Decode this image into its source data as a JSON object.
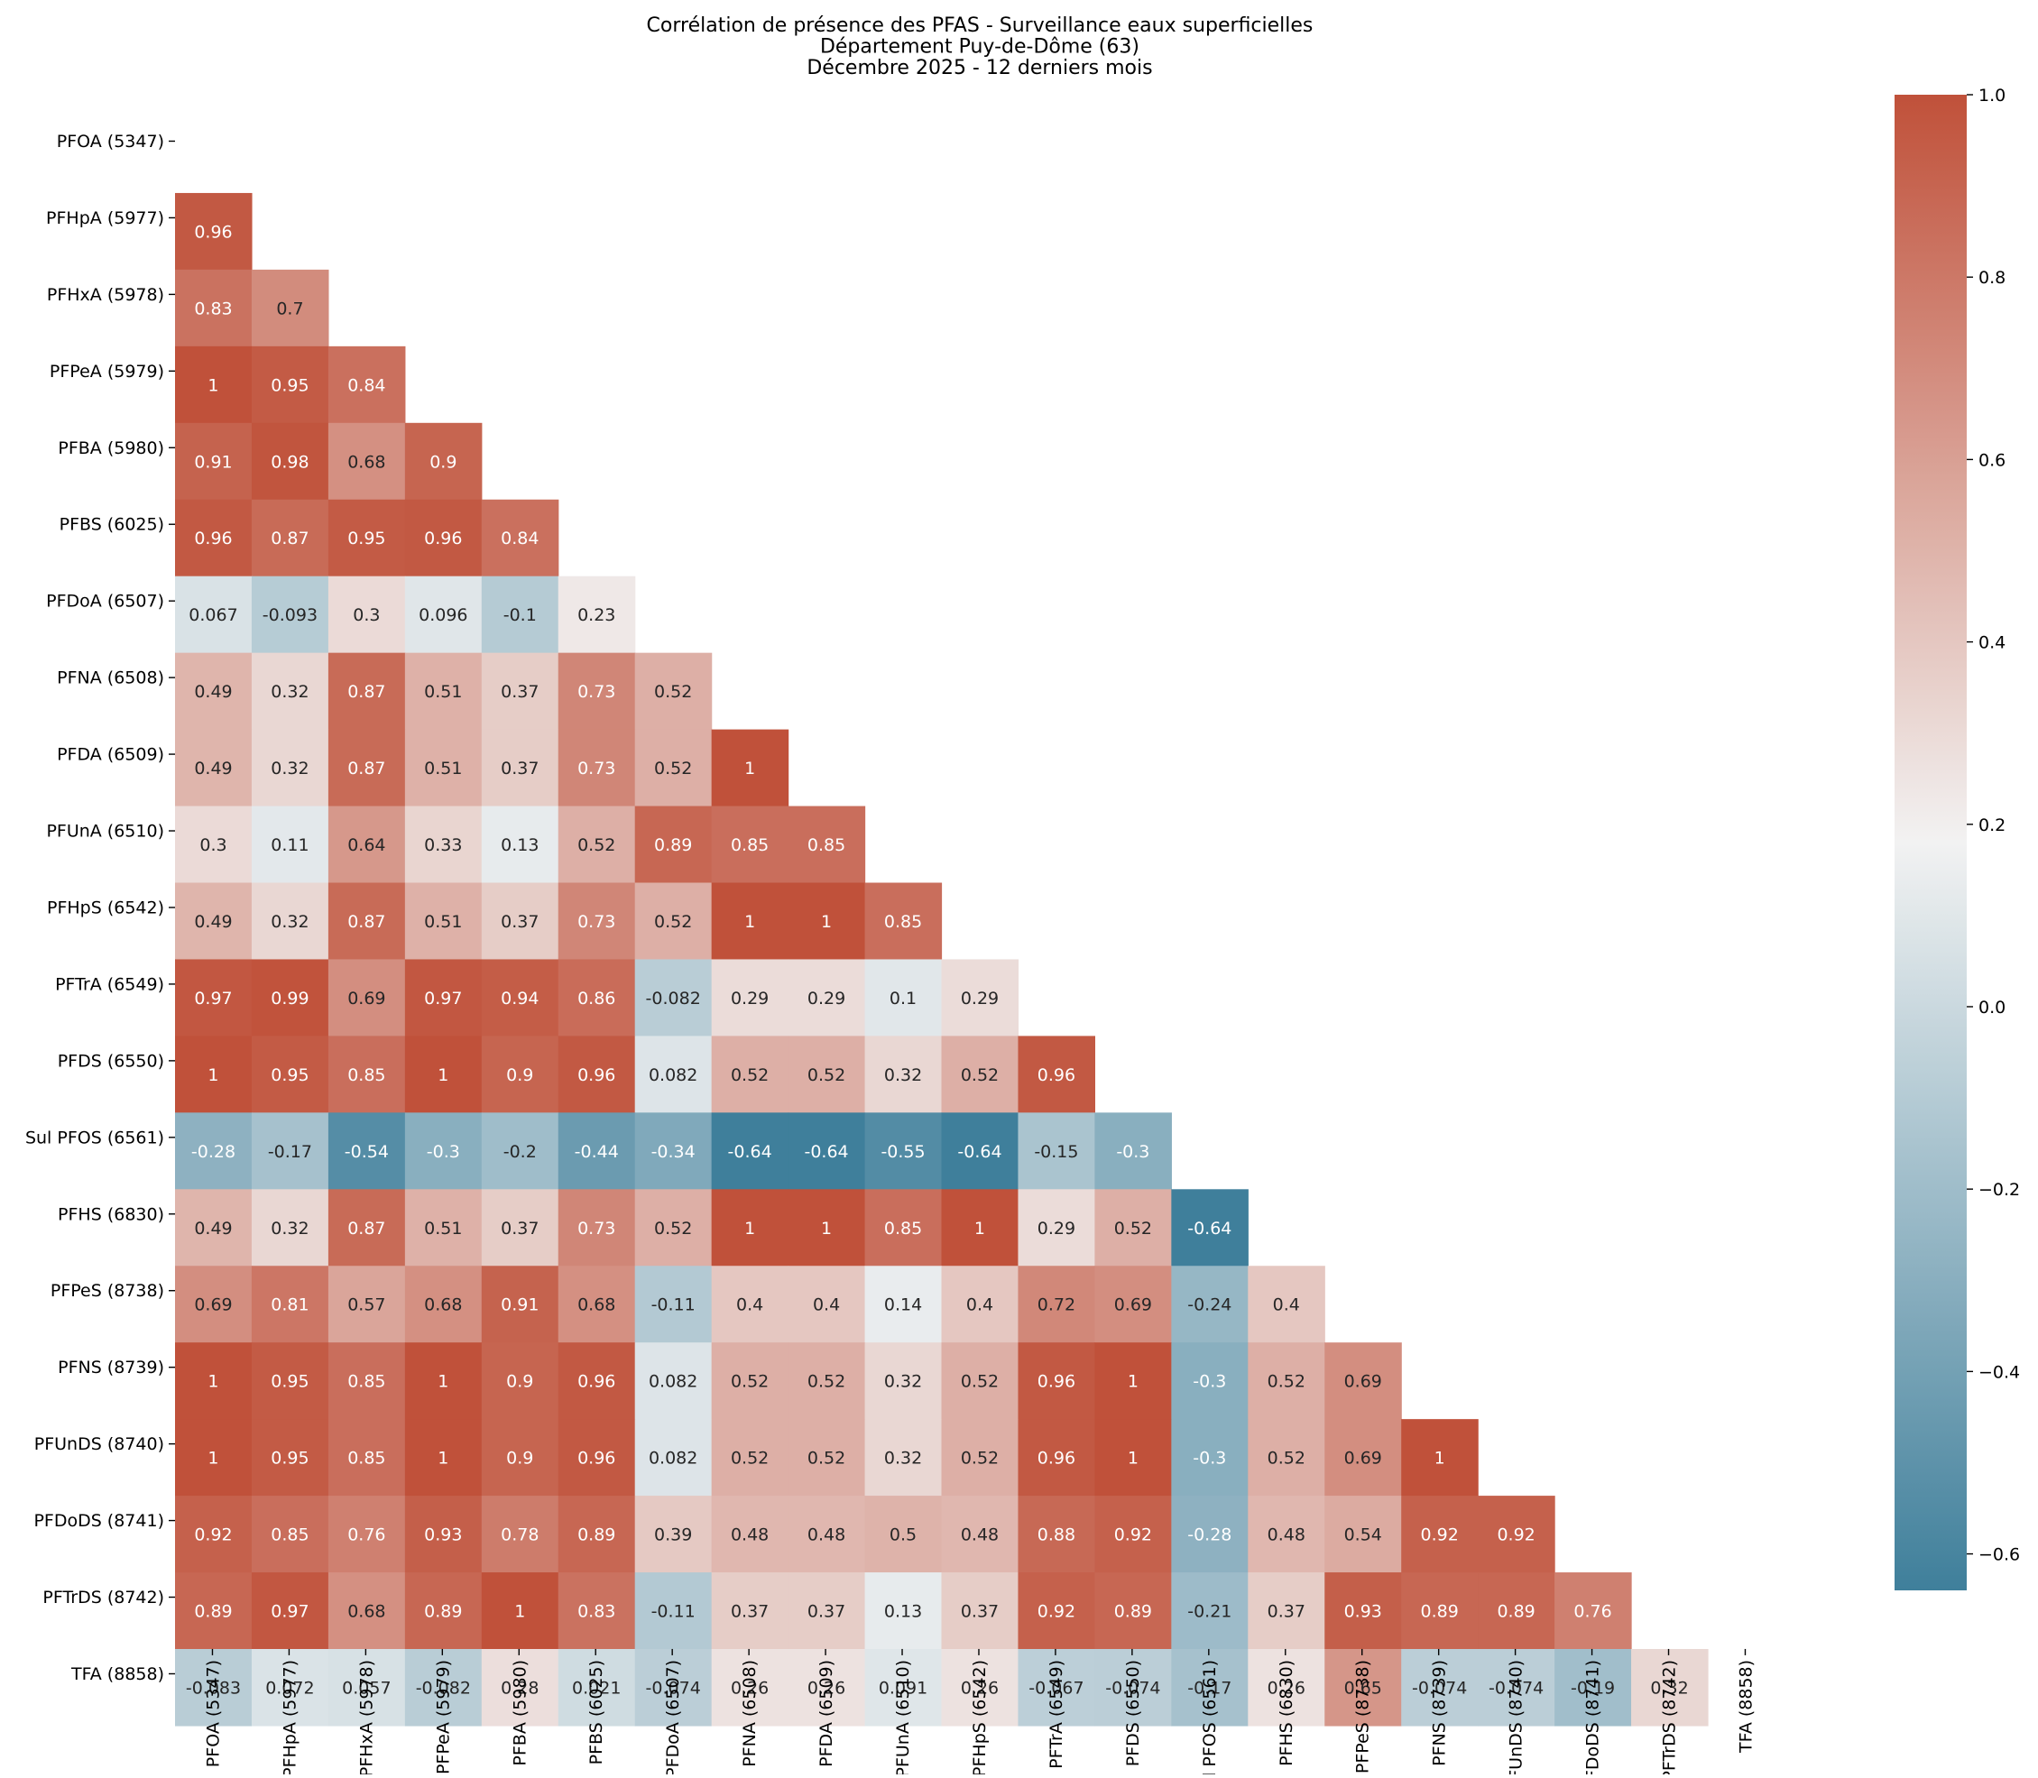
{
  "chart_data": {
    "type": "heatmap",
    "title": [
      "Corrélation de présence des PFAS - Surveillance eaux superficielles",
      "Département Puy-de-Dôme (63)",
      "Décembre 2025 - 12 derniers mois"
    ],
    "xlabel": "",
    "ylabel": "",
    "mask": "upper-triangle-and-diagonal",
    "labels": [
      "PFOA (5347)",
      "PFHpA (5977)",
      "PFHxA (5978)",
      "PFPeA (5979)",
      "PFBA (5980)",
      "PFBS (6025)",
      "PFDoA (6507)",
      "PFNA (6508)",
      "PFDA (6509)",
      "PFUnA (6510)",
      "PFHpS (6542)",
      "PFTrA (6549)",
      "PFDS (6550)",
      "Sul PFOS (6561)",
      "PFHS (6830)",
      "PFPeS (8738)",
      "PFNS (8739)",
      "PFUnDS (8740)",
      "PFDoDS (8741)",
      "PFTrDS (8742)",
      "TFA (8858)"
    ],
    "cells": [
      [],
      [
        "0.96"
      ],
      [
        "0.83",
        "0.7"
      ],
      [
        "1",
        "0.95",
        "0.84"
      ],
      [
        "0.91",
        "0.98",
        "0.68",
        "0.9"
      ],
      [
        "0.96",
        "0.87",
        "0.95",
        "0.96",
        "0.84"
      ],
      [
        "0.067",
        "-0.093",
        "0.3",
        "0.096",
        "-0.1",
        "0.23"
      ],
      [
        "0.49",
        "0.32",
        "0.87",
        "0.51",
        "0.37",
        "0.73",
        "0.52"
      ],
      [
        "0.49",
        "0.32",
        "0.87",
        "0.51",
        "0.37",
        "0.73",
        "0.52",
        "1"
      ],
      [
        "0.3",
        "0.11",
        "0.64",
        "0.33",
        "0.13",
        "0.52",
        "0.89",
        "0.85",
        "0.85"
      ],
      [
        "0.49",
        "0.32",
        "0.87",
        "0.51",
        "0.37",
        "0.73",
        "0.52",
        "1",
        "1",
        "0.85"
      ],
      [
        "0.97",
        "0.99",
        "0.69",
        "0.97",
        "0.94",
        "0.86",
        "-0.082",
        "0.29",
        "0.29",
        "0.1",
        "0.29"
      ],
      [
        "1",
        "0.95",
        "0.85",
        "1",
        "0.9",
        "0.96",
        "0.082",
        "0.52",
        "0.52",
        "0.32",
        "0.52",
        "0.96"
      ],
      [
        "-0.28",
        "-0.17",
        "-0.54",
        "-0.3",
        "-0.2",
        "-0.44",
        "-0.34",
        "-0.64",
        "-0.64",
        "-0.55",
        "-0.64",
        "-0.15",
        "-0.3"
      ],
      [
        "0.49",
        "0.32",
        "0.87",
        "0.51",
        "0.37",
        "0.73",
        "0.52",
        "1",
        "1",
        "0.85",
        "1",
        "0.29",
        "0.52",
        "-0.64"
      ],
      [
        "0.69",
        "0.81",
        "0.57",
        "0.68",
        "0.91",
        "0.68",
        "-0.11",
        "0.4",
        "0.4",
        "0.14",
        "0.4",
        "0.72",
        "0.69",
        "-0.24",
        "0.4"
      ],
      [
        "1",
        "0.95",
        "0.85",
        "1",
        "0.9",
        "0.96",
        "0.082",
        "0.52",
        "0.52",
        "0.32",
        "0.52",
        "0.96",
        "1",
        "-0.3",
        "0.52",
        "0.69"
      ],
      [
        "1",
        "0.95",
        "0.85",
        "1",
        "0.9",
        "0.96",
        "0.082",
        "0.52",
        "0.52",
        "0.32",
        "0.52",
        "0.96",
        "1",
        "-0.3",
        "0.52",
        "0.69",
        "1"
      ],
      [
        "0.92",
        "0.85",
        "0.76",
        "0.93",
        "0.78",
        "0.89",
        "0.39",
        "0.48",
        "0.48",
        "0.5",
        "0.48",
        "0.88",
        "0.92",
        "-0.28",
        "0.48",
        "0.54",
        "0.92",
        "0.92"
      ],
      [
        "0.89",
        "0.97",
        "0.68",
        "0.89",
        "1",
        "0.83",
        "-0.11",
        "0.37",
        "0.37",
        "0.13",
        "0.37",
        "0.92",
        "0.89",
        "-0.21",
        "0.37",
        "0.93",
        "0.89",
        "0.89",
        "0.76"
      ],
      [
        "-0.083",
        "0.072",
        "0.057",
        "-0.082",
        "0.28",
        "0.021",
        "-0.074",
        "0.26",
        "0.26",
        "0.091",
        "0.26",
        "-0.067",
        "-0.074",
        "-0.17",
        "0.26",
        "0.65",
        "-0.074",
        "-0.074",
        "-0.19",
        "0.32"
      ]
    ],
    "colorbar": {
      "vmin": -0.64,
      "vmax": 1.0,
      "center": 0.18,
      "ticks": [
        "1.0",
        "0.8",
        "0.6",
        "0.4",
        "0.2",
        "0.0",
        "−0.2",
        "−0.4",
        "−0.6"
      ],
      "tick_values": [
        1.0,
        0.8,
        0.6,
        0.4,
        0.2,
        0.0,
        -0.2,
        -0.4,
        -0.6
      ]
    },
    "colors": {
      "low": "#3f7f9b",
      "mid": "#f2f2f2",
      "high": "#c0513a",
      "text_dark": "#262626",
      "text_light": "#ffffff"
    }
  }
}
